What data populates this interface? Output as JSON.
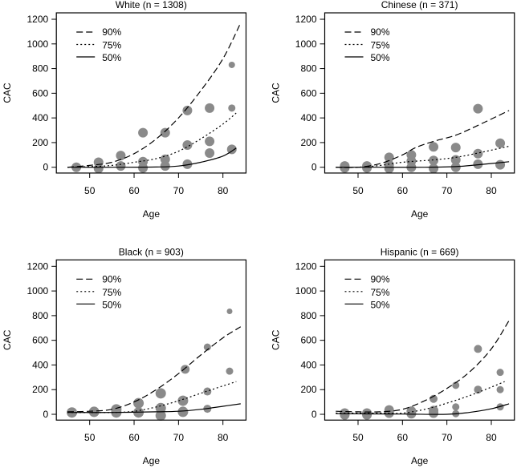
{
  "chart_data": [
    {
      "type": "scatter",
      "title": "White (n = 1308)",
      "xlabel": "Age",
      "ylabel": "CAC",
      "xlim": [
        42.5,
        85.2
      ],
      "ylim": [
        -47,
        1252
      ],
      "xticks": [
        50,
        60,
        70,
        80
      ],
      "yticks": [
        0,
        200,
        400,
        600,
        800,
        1000,
        1200
      ],
      "legend": {
        "placement": "top-left",
        "entries": [
          "90%",
          "75%",
          "50%"
        ]
      },
      "point_color": "#8a8a8a",
      "points": [
        [
          47,
          0,
          6
        ],
        [
          52,
          40,
          6
        ],
        [
          52,
          -10,
          6
        ],
        [
          57,
          95,
          6
        ],
        [
          57,
          10,
          6
        ],
        [
          62,
          280,
          6
        ],
        [
          62,
          45,
          6
        ],
        [
          62,
          -5,
          6
        ],
        [
          67,
          280,
          6
        ],
        [
          67,
          65,
          6
        ],
        [
          67,
          10,
          6
        ],
        [
          72,
          460,
          6
        ],
        [
          72,
          180,
          6
        ],
        [
          72,
          25,
          6
        ],
        [
          77,
          480,
          6
        ],
        [
          77,
          210,
          6
        ],
        [
          77,
          115,
          6
        ],
        [
          82,
          830,
          4
        ],
        [
          82,
          480,
          4.5
        ],
        [
          82,
          145,
          6
        ]
      ],
      "curves": [
        {
          "name": "90%",
          "style": "dashed",
          "x": [
            45,
            50,
            55,
            60,
            65,
            70,
            75,
            80,
            84
          ],
          "y": [
            0,
            15,
            40,
            110,
            230,
            400,
            620,
            880,
            1170
          ]
        },
        {
          "name": "75%",
          "style": "dotted",
          "x": [
            45,
            50,
            55,
            60,
            65,
            70,
            75,
            80,
            83
          ],
          "y": [
            0,
            5,
            15,
            40,
            70,
            130,
            230,
            350,
            440
          ]
        },
        {
          "name": "50%",
          "style": "solid",
          "x": [
            45,
            55,
            65,
            70,
            75,
            80,
            83
          ],
          "y": [
            0,
            0,
            2,
            10,
            40,
            90,
            155
          ]
        }
      ]
    },
    {
      "type": "scatter",
      "title": "Chinese (n = 371)",
      "xlabel": "Age",
      "ylabel": "CAC",
      "xlim": [
        42.5,
        85.2
      ],
      "ylim": [
        -47,
        1252
      ],
      "xticks": [
        50,
        60,
        70,
        80
      ],
      "yticks": [
        0,
        200,
        400,
        600,
        800,
        1000,
        1200
      ],
      "legend": {
        "placement": "top-left",
        "entries": [
          "90%",
          "75%",
          "50%"
        ]
      },
      "point_color": "#8a8a8a",
      "points": [
        [
          47,
          10,
          6
        ],
        [
          47,
          -5,
          6
        ],
        [
          52,
          10,
          6
        ],
        [
          52,
          -5,
          6
        ],
        [
          57,
          80,
          6
        ],
        [
          57,
          20,
          6
        ],
        [
          57,
          -10,
          6
        ],
        [
          62,
          100,
          6
        ],
        [
          62,
          50,
          6
        ],
        [
          62,
          0,
          6
        ],
        [
          67,
          165,
          6
        ],
        [
          67,
          55,
          6
        ],
        [
          67,
          -10,
          6
        ],
        [
          72,
          160,
          6
        ],
        [
          72,
          60,
          6
        ],
        [
          72,
          0,
          6
        ],
        [
          77,
          475,
          6
        ],
        [
          77,
          110,
          6
        ],
        [
          77,
          25,
          6
        ],
        [
          82,
          195,
          6
        ],
        [
          82,
          20,
          6
        ]
      ],
      "curves": [
        {
          "name": "90%",
          "style": "dashed",
          "x": [
            45,
            50,
            55,
            60,
            63,
            67,
            72,
            77,
            84
          ],
          "y": [
            0,
            0,
            30,
            100,
            160,
            210,
            260,
            340,
            460
          ]
        },
        {
          "name": "75%",
          "style": "dotted",
          "x": [
            45,
            50,
            55,
            60,
            67,
            72,
            77,
            84
          ],
          "y": [
            0,
            0,
            15,
            40,
            60,
            80,
            115,
            170
          ]
        },
        {
          "name": "50%",
          "style": "solid",
          "x": [
            45,
            55,
            65,
            72,
            77,
            84
          ],
          "y": [
            0,
            0,
            0,
            5,
            20,
            45
          ]
        }
      ]
    },
    {
      "type": "scatter",
      "title": "Black (n = 903)",
      "xlabel": "Age",
      "ylabel": "CAC",
      "xlim": [
        42.5,
        85.2
      ],
      "ylim": [
        -47,
        1252
      ],
      "xticks": [
        50,
        60,
        70,
        80
      ],
      "yticks": [
        0,
        200,
        400,
        600,
        800,
        1000,
        1200
      ],
      "legend": {
        "placement": "top-left",
        "entries": [
          "90%",
          "75%",
          "50%"
        ]
      },
      "point_color": "#8a8a8a",
      "points": [
        [
          46,
          15,
          6.5
        ],
        [
          51,
          20,
          6.5
        ],
        [
          56,
          40,
          6.5
        ],
        [
          56,
          15,
          6.5
        ],
        [
          61,
          90,
          6.5
        ],
        [
          61,
          15,
          6.5
        ],
        [
          66,
          170,
          6.5
        ],
        [
          66,
          50,
          6.5
        ],
        [
          66,
          -10,
          6.5
        ],
        [
          71.5,
          365,
          5.5
        ],
        [
          71,
          110,
          6.5
        ],
        [
          71,
          20,
          6.5
        ],
        [
          76.5,
          545,
          4.5
        ],
        [
          76.5,
          185,
          5
        ],
        [
          76.5,
          45,
          5
        ],
        [
          81.5,
          835,
          3.5
        ],
        [
          81.5,
          350,
          4.5
        ]
      ],
      "curves": [
        {
          "name": "90%",
          "style": "dashed",
          "x": [
            45,
            50,
            55,
            60,
            65,
            70,
            75,
            80,
            84
          ],
          "y": [
            20,
            25,
            40,
            100,
            200,
            330,
            480,
            620,
            710
          ]
        },
        {
          "name": "75%",
          "style": "dotted",
          "x": [
            45,
            55,
            60,
            65,
            70,
            75,
            80,
            83
          ],
          "y": [
            15,
            15,
            25,
            60,
            110,
            170,
            230,
            265
          ]
        },
        {
          "name": "50%",
          "style": "solid",
          "x": [
            45,
            55,
            65,
            70,
            75,
            80,
            84
          ],
          "y": [
            15,
            15,
            20,
            25,
            40,
            65,
            85
          ]
        }
      ]
    },
    {
      "type": "scatter",
      "title": "Hispanic (n = 669)",
      "xlabel": "Age",
      "ylabel": "CAC",
      "xlim": [
        42.5,
        85.2
      ],
      "ylim": [
        -47,
        1252
      ],
      "xticks": [
        50,
        60,
        70,
        80
      ],
      "yticks": [
        0,
        200,
        400,
        600,
        800,
        1000,
        1200
      ],
      "legend": {
        "placement": "top-left",
        "entries": [
          "90%",
          "75%",
          "50%"
        ]
      },
      "point_color": "#8a8a8a",
      "points": [
        [
          47,
          10,
          6
        ],
        [
          47,
          -5,
          6
        ],
        [
          52,
          10,
          6
        ],
        [
          52,
          -5,
          6
        ],
        [
          57,
          35,
          6
        ],
        [
          57,
          10,
          6
        ],
        [
          62,
          25,
          6
        ],
        [
          62,
          5,
          6
        ],
        [
          67,
          125,
          5
        ],
        [
          67,
          30,
          6
        ],
        [
          67,
          10,
          6
        ],
        [
          72,
          235,
          4.5
        ],
        [
          72,
          60,
          4.5
        ],
        [
          72,
          5,
          4.5
        ],
        [
          77,
          530,
          5
        ],
        [
          77,
          200,
          5
        ],
        [
          82,
          340,
          4.5
        ],
        [
          82,
          200,
          4.5
        ],
        [
          82,
          60,
          4.5
        ]
      ],
      "curves": [
        {
          "name": "90%",
          "style": "dashed",
          "x": [
            45,
            50,
            55,
            60,
            65,
            70,
            75,
            80,
            84
          ],
          "y": [
            25,
            20,
            20,
            40,
            110,
            210,
            340,
            530,
            760
          ]
        },
        {
          "name": "75%",
          "style": "dotted",
          "x": [
            45,
            55,
            60,
            65,
            70,
            75,
            80,
            83
          ],
          "y": [
            10,
            10,
            10,
            40,
            90,
            150,
            220,
            265
          ]
        },
        {
          "name": "50%",
          "style": "solid",
          "x": [
            45,
            60,
            70,
            75,
            80,
            84
          ],
          "y": [
            5,
            2,
            0,
            15,
            45,
            85
          ]
        }
      ]
    }
  ]
}
